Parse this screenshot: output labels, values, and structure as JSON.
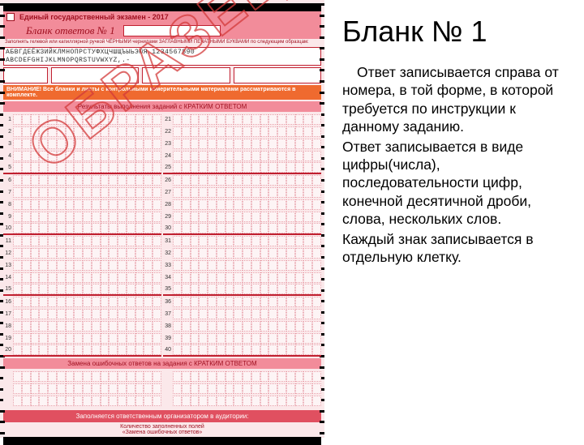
{
  "form": {
    "header_line": "Единый государственный экзамен - 2017",
    "title2": "Бланк ответов № 1",
    "alpha1": "АБВГДЕЁЖЗИЙКЛМНОПРСТУФХЦЧШЩЪЫЬЭЮЯ 1234567890",
    "alpha2": "ABCDEFGHIJKLMNOPQRSTUVWXYZ,.-",
    "meta_label1": "Код региона",
    "meta_label2": "Название предмета",
    "meta_label3": "Подпись участника ЕГЭ строго внутри окошка",
    "orange_banner": "ВНИМАНИЕ! Все бланки и листы с контрольными измерительными материалами рассматриваются в комплекте.",
    "section1": "Результаты выполнения заданий с КРАТКИМ ОТВЕТОМ",
    "row_count_left": 20,
    "row_count_right_start": 21,
    "row_count_right_end": 40,
    "cols_per_half": 17,
    "thick_every": 5,
    "section2": "Замена ошибочных ответов на задания с КРАТКИМ ОТВЕТОМ",
    "dark_banner": "Заполняется ответственным организатором в аудитории:",
    "footer1": "Количество заполненных полей",
    "footer2": "«Замена ошибочных ответов»",
    "watermark": "ОБРАЗЕЦ",
    "colors": {
      "bg": "#fbe8ea",
      "accent": "#c02030",
      "header_bg": "#f28c9a",
      "orange": "#ef6a2f",
      "dark_banner": "#e05060",
      "watermark": "#d43a3a"
    }
  },
  "text": {
    "heading": "Бланк № 1",
    "p1": "Ответ записывается справа от номера, в той форме, в которой требуется по инструкции к данному заданию.",
    "p2": "Ответ записывается в виде цифры(числа), последовательности цифр, конечной десятичной дроби, слова, нескольких слов.",
    "p3": "Каждый знак записывается в отдельную клетку."
  }
}
